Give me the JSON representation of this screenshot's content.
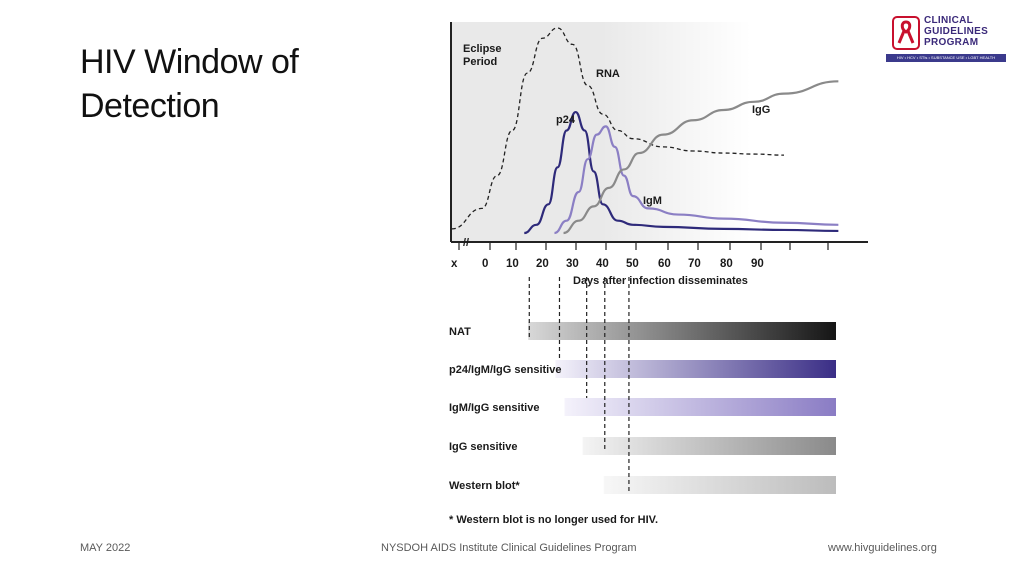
{
  "slide": {
    "title_line1": "HIV Window of",
    "title_line2": "Detection"
  },
  "logo": {
    "line1": "CLINICAL",
    "line2": "GUIDELINES",
    "line3": "PROGRAM",
    "tagline": "HIV • HCV • STIs • SUBSTANCE USE • LGBT HEALTH",
    "colors": {
      "ribbon": "#c8102e",
      "text": "#3b2a7a",
      "bar": "#3b3a8c"
    },
    "icon": "red-ribbon-icon"
  },
  "footer": {
    "date": "MAY 2022",
    "program": "NYSDOH AIDS Institute Clinical Guidelines Program",
    "url": "www.hivguidelines.org"
  },
  "chart_data": {
    "type": "line",
    "xlabel": "Days after infection disseminates",
    "x_ticks": [
      "x",
      "0",
      "10",
      "20",
      "30",
      "40",
      "50",
      "60",
      "70",
      "80",
      "90"
    ],
    "axis_break": "//",
    "eclipse_label": [
      "Eclipse",
      "Period"
    ],
    "y_axis_units": "",
    "series": [
      {
        "name": "RNA",
        "style": "dashed",
        "color": "#222222",
        "x": [
          -10,
          0,
          5,
          10,
          15,
          20,
          25,
          30,
          35,
          40,
          45,
          50,
          60,
          70,
          80,
          90,
          100
        ],
        "y": [
          0.02,
          0.12,
          0.28,
          0.5,
          0.78,
          0.95,
          1.0,
          0.92,
          0.72,
          0.58,
          0.5,
          0.46,
          0.42,
          0.4,
          0.39,
          0.385,
          0.38
        ]
      },
      {
        "name": "p24",
        "style": "solid",
        "color": "#2e2a7a",
        "x": [
          14,
          18,
          22,
          25,
          28,
          31,
          34,
          37,
          40,
          45,
          50,
          60,
          80,
          100,
          118
        ],
        "y": [
          0.0,
          0.04,
          0.14,
          0.32,
          0.5,
          0.59,
          0.5,
          0.3,
          0.14,
          0.06,
          0.04,
          0.03,
          0.02,
          0.015,
          0.01
        ]
      },
      {
        "name": "IgM",
        "style": "solid",
        "color": "#8b7fc4",
        "x": [
          24,
          28,
          32,
          35,
          38,
          41,
          44,
          47,
          50,
          55,
          65,
          80,
          100,
          118
        ],
        "y": [
          0.0,
          0.06,
          0.2,
          0.36,
          0.48,
          0.52,
          0.42,
          0.28,
          0.18,
          0.12,
          0.09,
          0.07,
          0.05,
          0.04
        ]
      },
      {
        "name": "IgG",
        "style": "solid",
        "color": "#8a8a8a",
        "x": [
          27,
          32,
          37,
          42,
          47,
          52,
          60,
          70,
          80,
          90,
          100,
          118
        ],
        "y": [
          0.0,
          0.06,
          0.13,
          0.22,
          0.31,
          0.39,
          0.48,
          0.55,
          0.6,
          0.64,
          0.68,
          0.74
        ]
      }
    ],
    "tests": [
      {
        "label": "NAT",
        "start_day": 14,
        "gradient": [
          "#d8d8d8",
          "#151515"
        ]
      },
      {
        "label": "p24/IgM/IgG sensitive",
        "start_day": 23,
        "gradient": [
          "#f4f2fb",
          "#3a2e86"
        ]
      },
      {
        "label": "IgM/IgG sensitive",
        "start_day": 26,
        "gradient": [
          "#f4f2fb",
          "#8a7cc4"
        ]
      },
      {
        "label": "IgG sensitive",
        "start_day": 32,
        "gradient": [
          "#f4f4f4",
          "#8a8a8a"
        ]
      },
      {
        "label": "Western blot*",
        "start_day": 39,
        "gradient": [
          "#f7f7f7",
          "#bcbcbc"
        ]
      }
    ],
    "marker_days": [
      14,
      24,
      33,
      39,
      47
    ],
    "footnote": "* Western blot is no longer used for HIV.",
    "colors": {
      "panel_bg": "#e9e9e9",
      "axis": "#222222"
    }
  }
}
